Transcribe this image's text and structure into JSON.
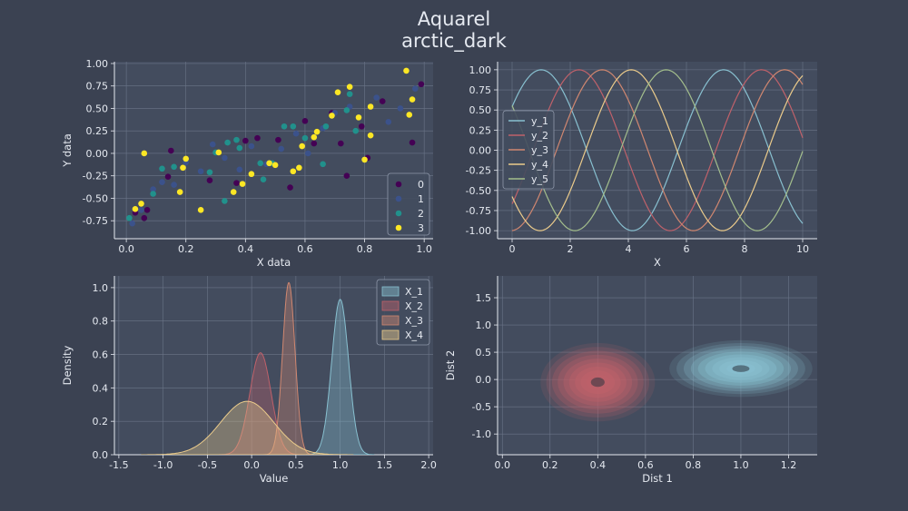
{
  "title": "Aquarel",
  "subtitle": "arctic_dark",
  "colors": {
    "background": "#3b4252",
    "axes_face": "#434c5e",
    "grid": "#6b7588",
    "text": "#e5e9f0",
    "line_palette": [
      "#88c0d0",
      "#bf616a",
      "#d08770",
      "#ebcb8b",
      "#a3be8c"
    ]
  },
  "chart_data": [
    {
      "type": "scatter",
      "xlabel": "X data",
      "ylabel": "Y data",
      "xlim": [
        -0.04,
        1.03
      ],
      "ylim": [
        -0.95,
        1.02
      ],
      "xticks": [
        "0.0",
        "0.2",
        "0.4",
        "0.6",
        "0.8",
        "1.0"
      ],
      "yticks": [
        "-0.75",
        "-0.50",
        "-0.25",
        "0.00",
        "0.25",
        "0.50",
        "0.75",
        "1.00"
      ],
      "legend_position": "lower-right",
      "legend_entries": [
        "0",
        "1",
        "2",
        "3"
      ],
      "series": [
        {
          "name": "0",
          "color": "#440154",
          "points": [
            [
              0.03,
              -0.66
            ],
            [
              0.06,
              -0.72
            ],
            [
              0.07,
              -0.63
            ],
            [
              0.15,
              0.03
            ],
            [
              0.14,
              -0.26
            ],
            [
              0.28,
              -0.3
            ],
            [
              0.37,
              -0.33
            ],
            [
              0.4,
              0.14
            ],
            [
              0.44,
              0.17
            ],
            [
              0.51,
              0.15
            ],
            [
              0.55,
              -0.38
            ],
            [
              0.6,
              0.36
            ],
            [
              0.63,
              0.11
            ],
            [
              0.69,
              0.45
            ],
            [
              0.72,
              0.11
            ],
            [
              0.74,
              -0.25
            ],
            [
              0.79,
              0.3
            ],
            [
              0.81,
              -0.05
            ],
            [
              0.86,
              0.58
            ],
            [
              0.96,
              0.12
            ],
            [
              0.99,
              0.77
            ]
          ]
        },
        {
          "name": "1",
          "color": "#3b528b",
          "points": [
            [
              0.02,
              -0.78
            ],
            [
              0.05,
              -0.63
            ],
            [
              0.09,
              -0.4
            ],
            [
              0.12,
              -0.32
            ],
            [
              0.16,
              -0.35
            ],
            [
              0.2,
              -0.1
            ],
            [
              0.25,
              -0.2
            ],
            [
              0.29,
              0.1
            ],
            [
              0.33,
              -0.05
            ],
            [
              0.38,
              -0.18
            ],
            [
              0.42,
              0.08
            ],
            [
              0.47,
              -0.12
            ],
            [
              0.52,
              0.05
            ],
            [
              0.57,
              0.22
            ],
            [
              0.61,
              0.0
            ],
            [
              0.66,
              0.28
            ],
            [
              0.7,
              0.45
            ],
            [
              0.75,
              0.52
            ],
            [
              0.78,
              0.4
            ],
            [
              0.84,
              0.62
            ],
            [
              0.88,
              0.35
            ],
            [
              0.92,
              0.5
            ],
            [
              0.97,
              0.72
            ]
          ]
        },
        {
          "name": "2",
          "color": "#21918c",
          "points": [
            [
              0.01,
              -0.72
            ],
            [
              0.09,
              -0.45
            ],
            [
              0.12,
              -0.17
            ],
            [
              0.16,
              -0.15
            ],
            [
              0.28,
              -0.21
            ],
            [
              0.3,
              0.01
            ],
            [
              0.33,
              -0.53
            ],
            [
              0.34,
              0.12
            ],
            [
              0.37,
              0.15
            ],
            [
              0.38,
              0.06
            ],
            [
              0.45,
              -0.11
            ],
            [
              0.46,
              -0.29
            ],
            [
              0.49,
              -0.11
            ],
            [
              0.53,
              0.3
            ],
            [
              0.56,
              0.3
            ],
            [
              0.6,
              0.17
            ],
            [
              0.66,
              -0.12
            ],
            [
              0.67,
              0.3
            ],
            [
              0.74,
              0.48
            ],
            [
              0.75,
              0.66
            ],
            [
              0.77,
              0.25
            ]
          ]
        },
        {
          "name": "3",
          "color": "#fde725",
          "points": [
            [
              0.03,
              -0.62
            ],
            [
              0.05,
              -0.56
            ],
            [
              0.06,
              0.0
            ],
            [
              0.18,
              -0.43
            ],
            [
              0.19,
              -0.16
            ],
            [
              0.2,
              -0.06
            ],
            [
              0.25,
              -0.63
            ],
            [
              0.31,
              0.01
            ],
            [
              0.36,
              -0.43
            ],
            [
              0.39,
              -0.34
            ],
            [
              0.42,
              -0.23
            ],
            [
              0.48,
              -0.11
            ],
            [
              0.5,
              -0.13
            ],
            [
              0.56,
              -0.2
            ],
            [
              0.58,
              -0.16
            ],
            [
              0.59,
              0.08
            ],
            [
              0.63,
              0.18
            ],
            [
              0.64,
              0.24
            ],
            [
              0.69,
              0.42
            ],
            [
              0.71,
              0.68
            ],
            [
              0.75,
              0.74
            ],
            [
              0.78,
              0.4
            ],
            [
              0.8,
              -0.07
            ],
            [
              0.82,
              0.2
            ],
            [
              0.82,
              0.52
            ],
            [
              0.94,
              0.92
            ],
            [
              0.95,
              0.43
            ],
            [
              0.96,
              0.6
            ]
          ]
        }
      ]
    },
    {
      "type": "line",
      "xlabel": "X",
      "ylabel": "",
      "xlim": [
        -0.5,
        10.5
      ],
      "ylim": [
        -1.1,
        1.1
      ],
      "xticks": [
        "0",
        "2",
        "4",
        "6",
        "8",
        "10"
      ],
      "yticks": [
        "-1.00",
        "-0.75",
        "-0.50",
        "-0.25",
        "0.00",
        "0.25",
        "0.50",
        "0.75",
        "1.00"
      ],
      "legend_position": "center-left",
      "series": [
        {
          "name": "y_1",
          "color": "#88c0d0",
          "function": "cos(x - 1.0)"
        },
        {
          "name": "y_2",
          "color": "#bf616a",
          "function": "cos(x - 2.3)"
        },
        {
          "name": "y_3",
          "color": "#d08770",
          "function": "cos(x - 3.1)"
        },
        {
          "name": "y_4",
          "color": "#ebcb8b",
          "function": "cos(x - 4.1)"
        },
        {
          "name": "y_5",
          "color": "#a3be8c",
          "function": "cos(x - 5.3)"
        }
      ]
    },
    {
      "type": "area",
      "xlabel": "Value",
      "ylabel": "Density",
      "xlim": [
        -1.55,
        2.05
      ],
      "ylim": [
        0,
        1.07
      ],
      "xticks": [
        "-1.5",
        "-1.0",
        "-0.5",
        "0.0",
        "0.5",
        "1.0",
        "1.5",
        "2.0"
      ],
      "yticks": [
        "0.0",
        "0.2",
        "0.4",
        "0.6",
        "0.8",
        "1.0"
      ],
      "legend_position": "top-right",
      "series": [
        {
          "name": "X_1",
          "color": "#88c0d0",
          "mean": 1.0,
          "sd": 0.095,
          "peak": 0.93
        },
        {
          "name": "X_2",
          "color": "#bf616a",
          "mean": 0.1,
          "sd": 0.12,
          "peak": 0.61
        },
        {
          "name": "X_3",
          "color": "#d08770",
          "mean": 0.42,
          "sd": 0.07,
          "peak": 1.03
        },
        {
          "name": "X_4",
          "color": "#ebcb8b",
          "mean": -0.05,
          "sd": 0.3,
          "peak": 0.32
        }
      ]
    },
    {
      "type": "heatmap",
      "xlabel": "Dist 1",
      "ylabel": "Dist 2",
      "xlim": [
        -0.02,
        1.32
      ],
      "ylim": [
        -1.38,
        1.9
      ],
      "xticks": [
        "0.0",
        "0.2",
        "0.4",
        "0.6",
        "0.8",
        "1.0",
        "1.2"
      ],
      "yticks": [
        "-1.0",
        "-0.5",
        "0.0",
        "0.5",
        "1.0",
        "1.5"
      ],
      "blobs": [
        {
          "color": "#bf616a",
          "cx": 0.4,
          "cy": -0.05,
          "rx": 0.24,
          "ry": 0.72
        },
        {
          "color": "#88c0d0",
          "cx": 1.0,
          "cy": 0.2,
          "rx": 0.3,
          "ry": 0.52
        }
      ]
    }
  ]
}
